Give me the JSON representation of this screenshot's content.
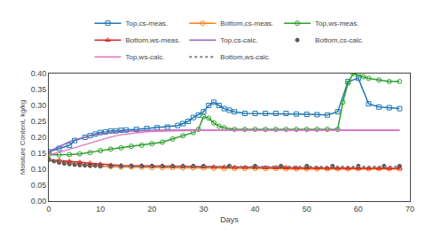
{
  "chart_data": {
    "type": "line",
    "xlabel": "Days",
    "ylabel": "Moisture Content, kg/kg",
    "xlim": [
      0,
      70
    ],
    "ylim": [
      0,
      0.4
    ],
    "xticks": [
      0,
      10,
      20,
      30,
      40,
      50,
      60,
      70
    ],
    "yticks": [
      {
        "value": 0,
        "label": "0.00"
      },
      {
        "value": 0.05,
        "label": "0.05"
      },
      {
        "value": 0.1,
        "label": "0.10"
      },
      {
        "value": 0.15,
        "label": "0.15"
      },
      {
        "value": 0.2,
        "label": "0.20"
      },
      {
        "value": 0.25,
        "label": "0.25"
      },
      {
        "value": 0.3,
        "label": "0.30"
      },
      {
        "value": 0.35,
        "label": "0.35"
      },
      {
        "value": 0.4,
        "label": "0.40"
      }
    ],
    "grid": false,
    "legend": "top",
    "series": [
      {
        "name": "Top,cs-meas.",
        "marker": "square",
        "line_style": "solid",
        "x": [
          0,
          2,
          4,
          5,
          7,
          8,
          9,
          10,
          11,
          12,
          13,
          14,
          15,
          17,
          19,
          21,
          23,
          25,
          26,
          27,
          28,
          29,
          30,
          31,
          32,
          33,
          34,
          35,
          36,
          38,
          40,
          42,
          44,
          46,
          48,
          50,
          52,
          54,
          56,
          58,
          60,
          62,
          64,
          66,
          68
        ],
        "values": [
          0.155,
          0.165,
          0.175,
          0.19,
          0.2,
          0.205,
          0.21,
          0.215,
          0.217,
          0.22,
          0.22,
          0.222,
          0.223,
          0.225,
          0.228,
          0.23,
          0.232,
          0.237,
          0.243,
          0.25,
          0.262,
          0.27,
          0.28,
          0.3,
          0.31,
          0.3,
          0.29,
          0.285,
          0.28,
          0.275,
          0.275,
          0.275,
          0.275,
          0.275,
          0.273,
          0.272,
          0.271,
          0.27,
          0.28,
          0.375,
          0.385,
          0.305,
          0.295,
          0.293,
          0.29
        ]
      },
      {
        "name": "Bottom,cs-meas.",
        "marker": "circle",
        "line_style": "solid",
        "x": [
          0,
          2,
          4,
          6,
          8,
          10,
          12,
          14,
          16,
          18,
          20,
          22,
          24,
          26,
          28,
          30,
          32,
          34,
          36,
          38,
          40,
          42,
          44,
          46,
          48,
          50,
          52,
          54,
          56,
          58,
          60,
          62,
          64,
          66,
          68
        ],
        "values": [
          0.13,
          0.125,
          0.12,
          0.115,
          0.112,
          0.11,
          0.108,
          0.107,
          0.107,
          0.106,
          0.105,
          0.105,
          0.105,
          0.104,
          0.104,
          0.104,
          0.103,
          0.102,
          0.102,
          0.102,
          0.102,
          0.102,
          0.102,
          0.101,
          0.101,
          0.101,
          0.101,
          0.101,
          0.101,
          0.101,
          0.101,
          0.101,
          0.101,
          0.101,
          0.101
        ]
      },
      {
        "name": "Top,ws-meas.",
        "marker": "circle",
        "line_style": "solid",
        "x": [
          0,
          2,
          4,
          6,
          8,
          10,
          12,
          14,
          16,
          18,
          20,
          22,
          24,
          26,
          28,
          29,
          30,
          31,
          32,
          33,
          34,
          36,
          38,
          40,
          42,
          44,
          46,
          48,
          50,
          52,
          54,
          56,
          57,
          58,
          59,
          60,
          61,
          62,
          64,
          66,
          68
        ],
        "values": [
          0.145,
          0.145,
          0.146,
          0.148,
          0.152,
          0.158,
          0.163,
          0.167,
          0.172,
          0.175,
          0.18,
          0.185,
          0.195,
          0.205,
          0.215,
          0.225,
          0.265,
          0.26,
          0.245,
          0.235,
          0.23,
          0.225,
          0.225,
          0.225,
          0.225,
          0.225,
          0.225,
          0.225,
          0.225,
          0.225,
          0.225,
          0.225,
          0.31,
          0.37,
          0.4,
          0.395,
          0.39,
          0.385,
          0.38,
          0.375,
          0.375
        ]
      },
      {
        "name": "Bottom,ws-meas.",
        "marker": "triangle",
        "line_style": "solid",
        "x": [
          0,
          2,
          4,
          6,
          8,
          10,
          12,
          14,
          16,
          18,
          20,
          22,
          24,
          26,
          28,
          30,
          32,
          34,
          36,
          38,
          40,
          42,
          44,
          46,
          48,
          50,
          52,
          54,
          56,
          58,
          60,
          62,
          64,
          66,
          68
        ],
        "values": [
          0.13,
          0.128,
          0.125,
          0.122,
          0.119,
          0.116,
          0.113,
          0.112,
          0.111,
          0.111,
          0.11,
          0.11,
          0.109,
          0.109,
          0.109,
          0.108,
          0.107,
          0.107,
          0.106,
          0.106,
          0.106,
          0.105,
          0.105,
          0.105,
          0.104,
          0.104,
          0.104,
          0.103,
          0.103,
          0.103,
          0.103,
          0.103,
          0.103,
          0.103,
          0.103
        ]
      },
      {
        "name": "Top,cs-calc.",
        "marker": "none",
        "line_style": "solid",
        "x": [
          0,
          1,
          2,
          3,
          4,
          5,
          6,
          7,
          8,
          9,
          10,
          12,
          14,
          16,
          18,
          20,
          22,
          24,
          26,
          28,
          30,
          35,
          40,
          45,
          50,
          55,
          60,
          65,
          68
        ],
        "values": [
          0.155,
          0.163,
          0.171,
          0.179,
          0.186,
          0.192,
          0.197,
          0.201,
          0.205,
          0.208,
          0.211,
          0.215,
          0.218,
          0.22,
          0.221,
          0.222,
          0.222,
          0.223,
          0.223,
          0.223,
          0.223,
          0.223,
          0.223,
          0.223,
          0.223,
          0.223,
          0.223,
          0.223,
          0.223
        ]
      },
      {
        "name": "Bottom,cs-calc.",
        "marker": "dot",
        "line_style": "none",
        "x": [
          0,
          1,
          2,
          3,
          4,
          5,
          6,
          7,
          8,
          9,
          10,
          12,
          14,
          16,
          18,
          20,
          22,
          24,
          26,
          28,
          30,
          35,
          40,
          45,
          50,
          55,
          60,
          65,
          68
        ],
        "values": [
          0.13,
          0.125,
          0.121,
          0.118,
          0.116,
          0.114,
          0.113,
          0.112,
          0.111,
          0.111,
          0.11,
          0.11,
          0.11,
          0.11,
          0.11,
          0.11,
          0.11,
          0.11,
          0.11,
          0.11,
          0.11,
          0.11,
          0.11,
          0.11,
          0.11,
          0.11,
          0.11,
          0.11,
          0.11
        ]
      },
      {
        "name": "Top,ws-calc.",
        "marker": "none",
        "line_style": "solid",
        "x": [
          0,
          1,
          2,
          3,
          4,
          5,
          6,
          7,
          8,
          9,
          10,
          12,
          14,
          16,
          18,
          20,
          22,
          24,
          26,
          28,
          30,
          35,
          40,
          45,
          50,
          55,
          60,
          65,
          68
        ],
        "values": [
          0.145,
          0.148,
          0.153,
          0.158,
          0.163,
          0.168,
          0.173,
          0.178,
          0.183,
          0.188,
          0.193,
          0.201,
          0.208,
          0.213,
          0.216,
          0.219,
          0.22,
          0.221,
          0.222,
          0.222,
          0.222,
          0.222,
          0.222,
          0.222,
          0.222,
          0.222,
          0.222,
          0.222,
          0.222
        ]
      },
      {
        "name": "Bottom,ws-calc.",
        "marker": "none",
        "line_style": "dotted",
        "x": [
          0,
          1,
          2,
          3,
          4,
          5,
          6,
          7,
          8,
          9,
          10,
          12,
          14,
          16,
          18,
          20,
          22,
          24,
          26,
          28,
          30,
          35,
          40,
          45,
          50,
          55,
          60,
          65,
          68
        ],
        "values": [
          0.13,
          0.127,
          0.124,
          0.121,
          0.119,
          0.117,
          0.115,
          0.113,
          0.112,
          0.111,
          0.11,
          0.109,
          0.108,
          0.108,
          0.108,
          0.108,
          0.108,
          0.108,
          0.108,
          0.108,
          0.108,
          0.108,
          0.108,
          0.108,
          0.108,
          0.108,
          0.108,
          0.108,
          0.108
        ]
      }
    ]
  }
}
